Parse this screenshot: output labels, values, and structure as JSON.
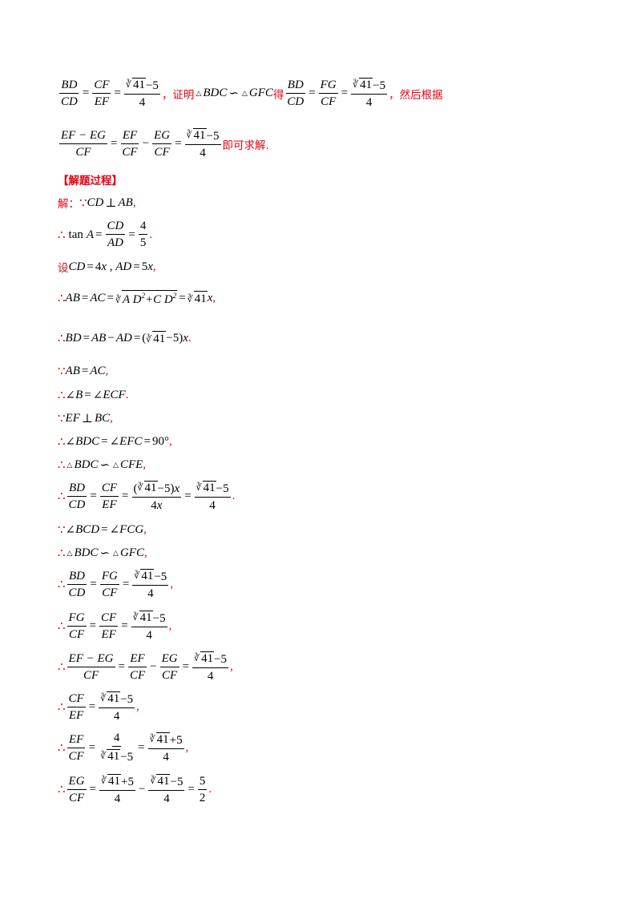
{
  "hint": {
    "text_proof": "，证明",
    "text_de": "得",
    "text_then": "，然后根据",
    "text_end": "即可求解."
  },
  "section_title": "【解题过程】",
  "solution": {
    "jie": "解：",
    "step2_prefix": "∴",
    "tan": "tan",
    "set": "设",
    "because": "∵",
    "therefore": "∴"
  }
}
